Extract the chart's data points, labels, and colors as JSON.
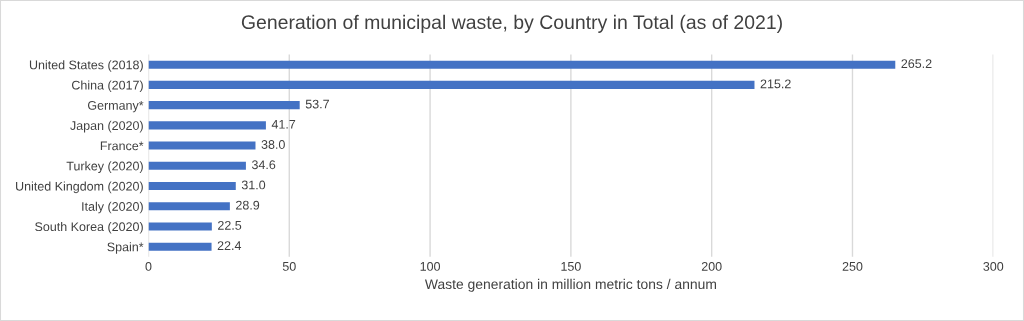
{
  "chart_data": {
    "type": "bar",
    "orientation": "horizontal",
    "title": "Generation of municipal waste, by Country in Total (as of 2021)",
    "xlabel": "Waste generation in million metric tons / annum",
    "categories": [
      "United States (2018)",
      "China (2017)",
      "Germany*",
      "Japan (2020)",
      "France*",
      "Turkey (2020)",
      "United Kingdom (2020)",
      "Italy (2020)",
      "South Korea (2020)",
      "Spain*"
    ],
    "values": [
      265.2,
      215.2,
      53.7,
      41.7,
      38.0,
      34.6,
      31.0,
      28.9,
      22.5,
      22.4
    ],
    "value_labels": [
      "265.2",
      "215.2",
      "53.7",
      "41.7",
      "38.0",
      "34.6",
      "31.0",
      "28.9",
      "22.5",
      "22.4"
    ],
    "color": "#4472c4",
    "xlim": [
      0,
      300
    ],
    "xticks": [
      0,
      50,
      100,
      150,
      200,
      250,
      300
    ],
    "grid": "x",
    "legend": false
  }
}
